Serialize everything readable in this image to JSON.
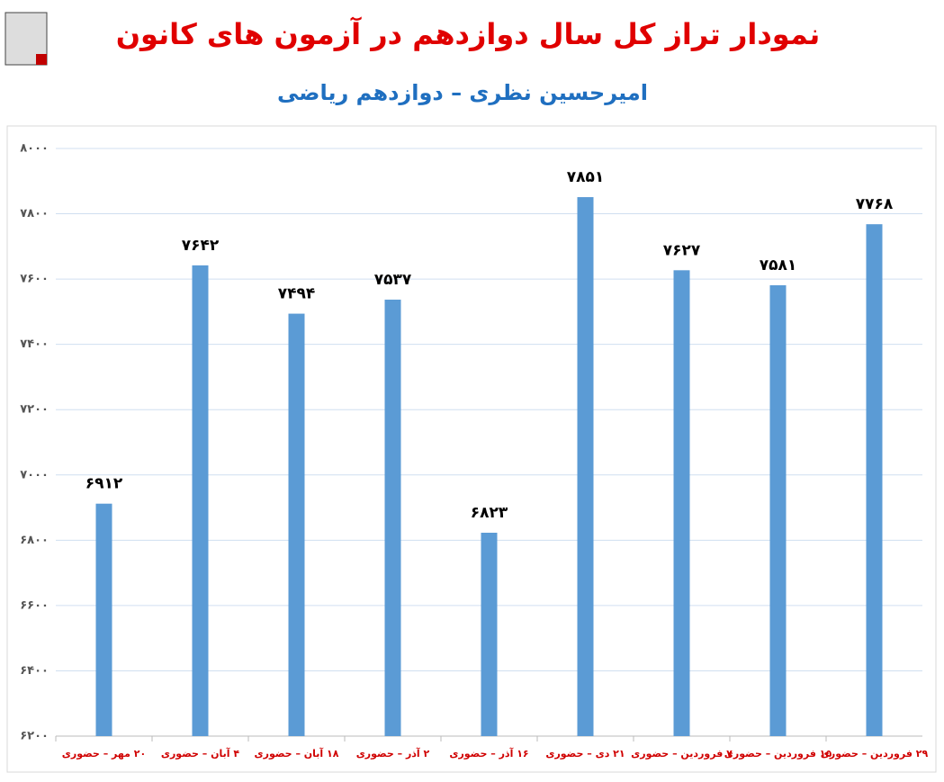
{
  "chart_data": {
    "type": "bar",
    "title": "نمودار تراز کل سال دوازدهم در آزمون های کانون",
    "subtitle": "امیرحسین نظری – دوازدهم ریاضی",
    "categories": [
      "۲۰ مهر – حضوری",
      "۴ آبان – حضوری",
      "۱۸ آبان – حضوری",
      "۲ آذر – حضوری",
      "۱۶ آذر – حضوری",
      "۲۱ دی – حضوری",
      "۷ فروردین – حضوری",
      "۱۵ فروردین – حضوری",
      "۲۹ فروردین – حضوری"
    ],
    "values": [
      6912,
      7642,
      7494,
      7537,
      6823,
      7851,
      7627,
      7581,
      7768
    ],
    "value_labels": [
      "۶۹۱۲",
      "۷۶۴۲",
      "۷۴۹۴",
      "۷۵۳۷",
      "۶۸۲۳",
      "۷۸۵۱",
      "۷۶۲۷",
      "۷۵۸۱",
      "۷۷۶۸"
    ],
    "color": "#5b9bd5",
    "ylim": [
      6200,
      8000
    ],
    "yticks": [
      {
        "value": 6200,
        "label": "۶۲۰۰"
      },
      {
        "value": 6400,
        "label": "۶۴۰۰"
      },
      {
        "value": 6600,
        "label": "۶۶۰۰"
      },
      {
        "value": 6800,
        "label": "۶۸۰۰"
      },
      {
        "value": 7000,
        "label": "۷۰۰۰"
      },
      {
        "value": 7200,
        "label": "۷۲۰۰"
      },
      {
        "value": 7400,
        "label": "۷۴۰۰"
      },
      {
        "value": 7600,
        "label": "۷۶۰۰"
      },
      {
        "value": 7800,
        "label": "۷۸۰۰"
      },
      {
        "value": 8000,
        "label": "۸۰۰۰"
      }
    ],
    "grid": true
  }
}
